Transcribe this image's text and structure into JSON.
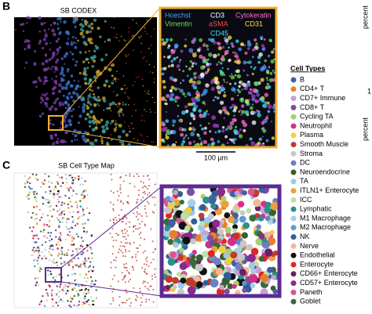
{
  "panels": [
    {
      "label": "B",
      "title": "SB CODEX",
      "channels": [
        {
          "text": "Hoechst",
          "color": "#4aa0ff"
        },
        {
          "text": "CD3",
          "color": "#ffffff"
        },
        {
          "text": "Cytokeratin",
          "color": "#ff6ec7"
        },
        {
          "text": "Vimentin",
          "color": "#6be04a"
        },
        {
          "text": "aSMA",
          "color": "#ff4a4a"
        },
        {
          "text": "CD31",
          "color": "#ffe040"
        },
        {
          "text": "CD45",
          "color": "#40e0ff"
        }
      ],
      "scale_bar": "100 µm",
      "box_color": "#f0b030"
    },
    {
      "label": "C",
      "title": "SB Cell Type Map",
      "box_color": "#5b2c8f"
    }
  ],
  "legend": {
    "title": "Cell Types",
    "items": [
      {
        "name": "B",
        "color": "#3f5fa8"
      },
      {
        "name": "CD4+ T",
        "color": "#e97f2b"
      },
      {
        "name": "CD7+ Immune",
        "color": "#c9a0d8"
      },
      {
        "name": "CD8+ T",
        "color": "#7a4fa0"
      },
      {
        "name": "Cycling TA",
        "color": "#a8d070"
      },
      {
        "name": "Neutrophil",
        "color": "#d62d8a"
      },
      {
        "name": "Plasma",
        "color": "#f2d03a"
      },
      {
        "name": "Smooth Muscle",
        "color": "#c23b2a"
      },
      {
        "name": "Stroma",
        "color": "#c8c8c8"
      },
      {
        "name": "DC",
        "color": "#6e7fc2"
      },
      {
        "name": "Neuroendocrine",
        "color": "#3a5f2f"
      },
      {
        "name": "TA",
        "color": "#9ec9e8"
      },
      {
        "name": "ITLN1+ Enterocyte",
        "color": "#e9a23b"
      },
      {
        "name": "ICC",
        "color": "#b9e2a8"
      },
      {
        "name": "Lymphatic",
        "color": "#2c8f8a"
      },
      {
        "name": "M1 Macrophage",
        "color": "#a6cfe8"
      },
      {
        "name": "M2 Macrophage",
        "color": "#5b9ad4"
      },
      {
        "name": "NK",
        "color": "#2d5f9a"
      },
      {
        "name": "Nerve",
        "color": "#f4b79a"
      },
      {
        "name": "Endothelial",
        "color": "#111111"
      },
      {
        "name": "Enterocyte",
        "color": "#e0261e"
      },
      {
        "name": "CD66+ Enterocyte",
        "color": "#6b1f66"
      },
      {
        "name": "CD57+ Enterocyte",
        "color": "#8a2a8a"
      },
      {
        "name": "Paneth",
        "color": "#d9578a"
      },
      {
        "name": "Goblet",
        "color": "#3a6a3a"
      }
    ]
  },
  "edge_labels": [
    "percent",
    "1",
    "percent"
  ]
}
